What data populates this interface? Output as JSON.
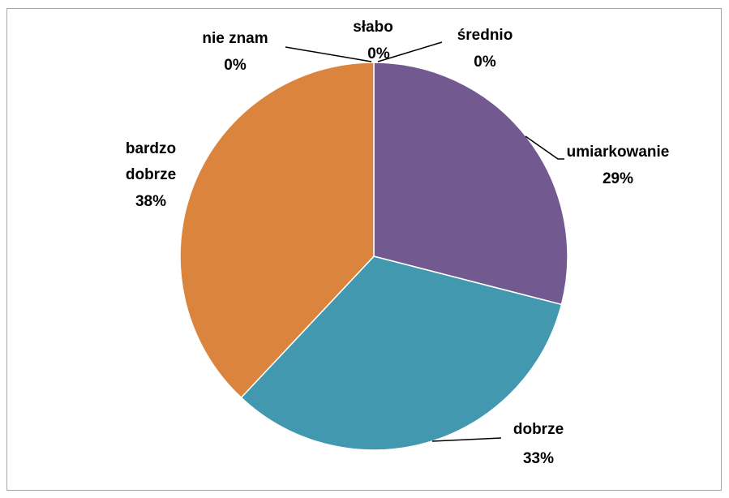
{
  "chart_data": {
    "type": "pie",
    "categories": [
      "słabo",
      "średnio",
      "umiarkowanie",
      "dobrze",
      "bardzo dobrze",
      "nie znam"
    ],
    "values": [
      0,
      0,
      29,
      33,
      38,
      0
    ],
    "value_labels": [
      "0%",
      "0%",
      "29%",
      "33%",
      "38%",
      "0%"
    ],
    "colors": [
      "#4f81bd",
      "#c0504d",
      "#725990",
      "#4198af",
      "#db843d",
      "#9bbb59"
    ]
  }
}
